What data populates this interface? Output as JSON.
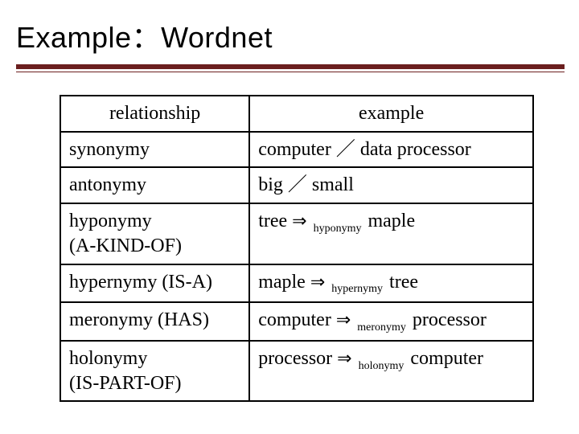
{
  "title": "Example：Wordnet",
  "colors": {
    "rule": "#6b1f1f",
    "border": "#000000",
    "text": "#000000",
    "background": "#ffffff"
  },
  "typography": {
    "title_font": "Arial",
    "title_size_pt": 27,
    "body_font": "Times New Roman",
    "body_size_pt": 18,
    "subscript_size_pt": 11
  },
  "table": {
    "type": "table",
    "columns": [
      "relationship",
      "example"
    ],
    "col_widths_pct": [
      40,
      60
    ],
    "rows": [
      {
        "relationship": "synonymy",
        "example": {
          "left": "computer",
          "sep": "／",
          "right": "data processor"
        }
      },
      {
        "relationship": "antonymy",
        "example": {
          "left": "big",
          "sep": "／",
          "right": "small"
        }
      },
      {
        "relationship_line1": "hyponymy",
        "relationship_line2": "(A-KIND-OF)",
        "example": {
          "left": "tree",
          "arrow": "⇒",
          "sub": "hyponymy",
          "right": "maple"
        }
      },
      {
        "relationship": "hypernymy (IS-A)",
        "example": {
          "left": "maple",
          "arrow": "⇒",
          "sub": "hypernymy",
          "right": "tree"
        }
      },
      {
        "relationship": "meronymy (HAS)",
        "example": {
          "left": "computer",
          "arrow": "⇒",
          "sub": "meronymy",
          "right": "processor"
        }
      },
      {
        "relationship_line1": "holonymy",
        "relationship_line2": "(IS-PART-OF)",
        "example": {
          "left": "processor",
          "arrow": "⇒",
          "sub": "holonymy",
          "right": "computer"
        }
      }
    ]
  }
}
